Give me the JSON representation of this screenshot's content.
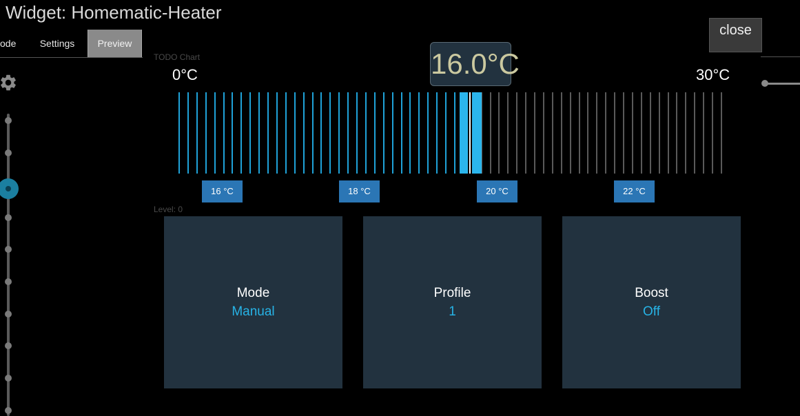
{
  "window": {
    "title": "Widget: Homematic-Heater",
    "close_label": "close"
  },
  "tabs": [
    {
      "label": "ode",
      "active": false
    },
    {
      "label": "Settings",
      "active": false
    },
    {
      "label": "Preview",
      "active": true
    }
  ],
  "chart": {
    "placeholder": "TODO Chart",
    "min_label": "0°C",
    "max_label": "30°C",
    "current_value": "16.0°C",
    "level_label": "Level: 0",
    "colors": {
      "active": "#1fa3d9",
      "inactive": "#5a5a5a",
      "selected": "#2bb5ec"
    },
    "ticks_active": 33,
    "ticks_total": 62
  },
  "presets": [
    {
      "label": "16 °C"
    },
    {
      "label": "18 °C"
    },
    {
      "label": "20 °C"
    },
    {
      "label": "22 °C"
    }
  ],
  "tiles": [
    {
      "label": "Mode",
      "value": "Manual"
    },
    {
      "label": "Profile",
      "value": "1"
    },
    {
      "label": "Boost",
      "value": "Off"
    }
  ],
  "colors": {
    "tile_bg": "#22323f",
    "accent": "#27b3e6",
    "preset_bg": "#2b76b5",
    "tab_active_bg": "#8a8a8a"
  },
  "icons": {
    "settings": "gear-icon"
  }
}
